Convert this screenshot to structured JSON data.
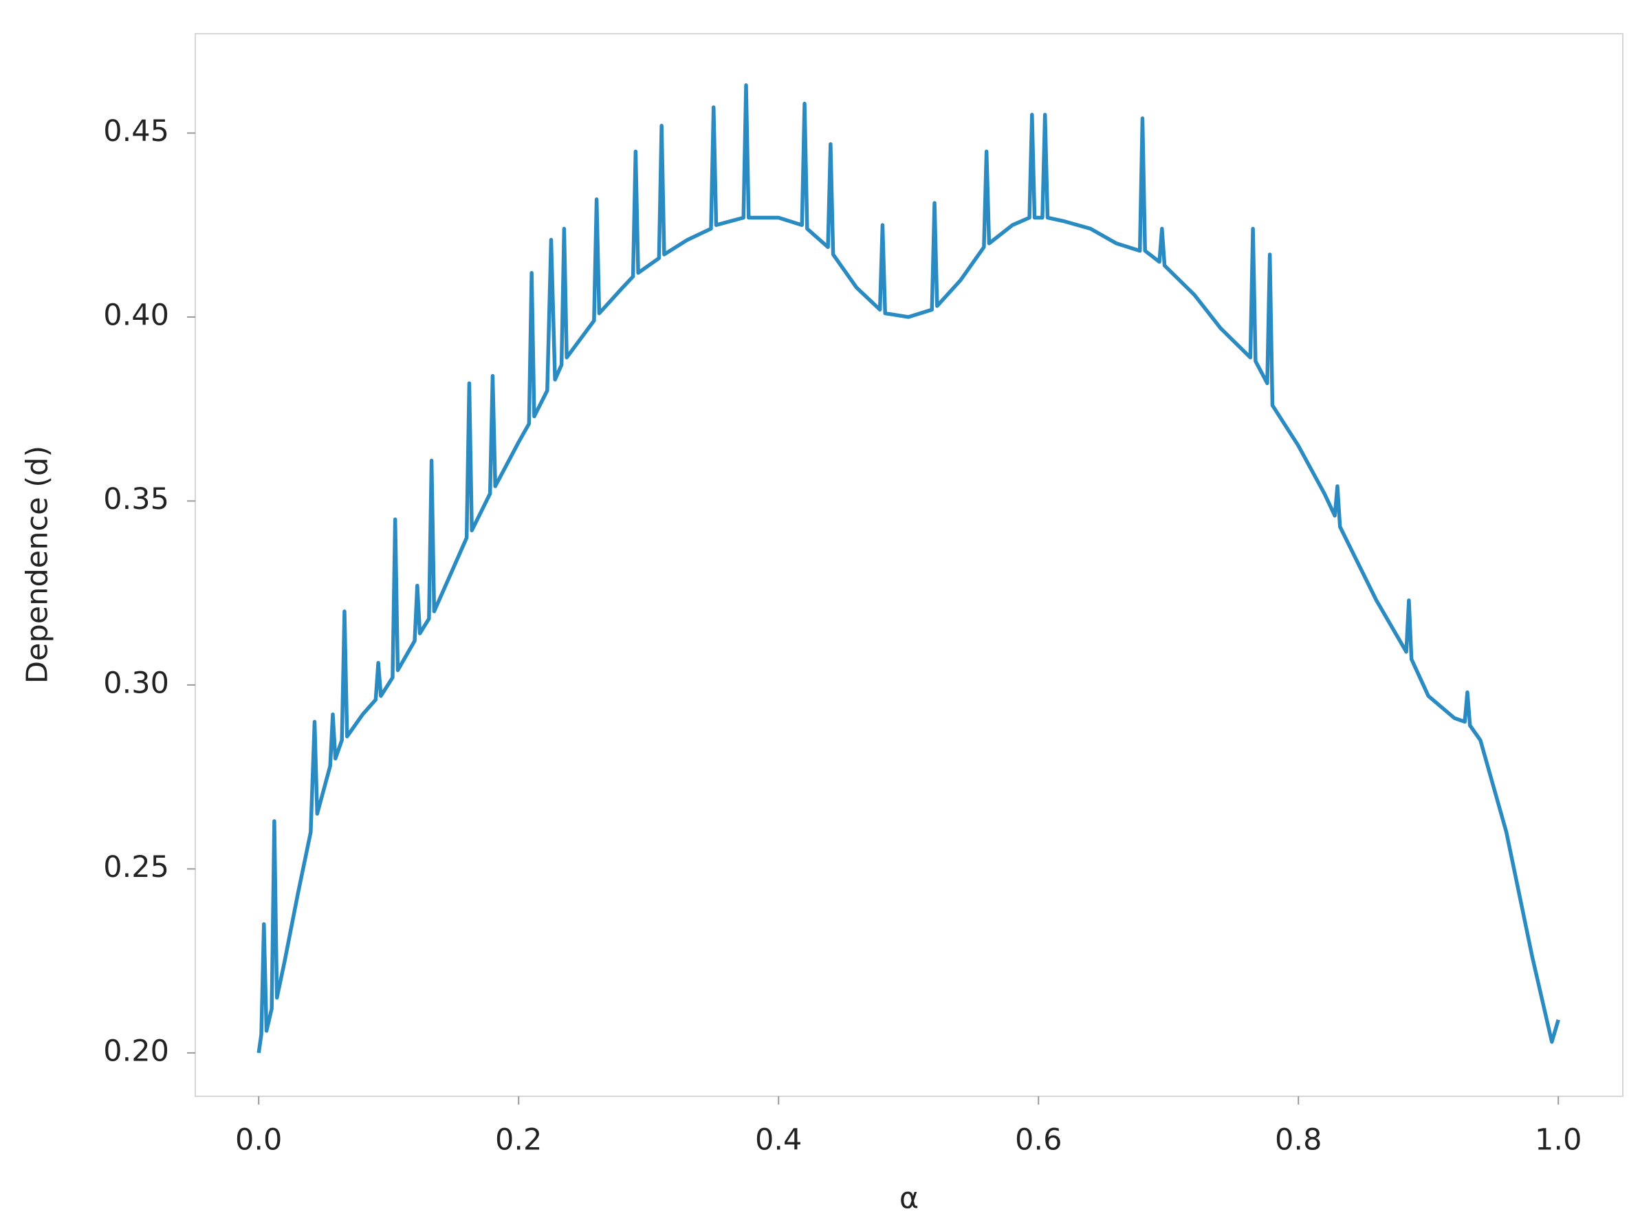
{
  "chart_data": {
    "type": "line",
    "xlabel": "α",
    "ylabel": "Dependence (d)",
    "xlim": [
      -0.0488,
      1.0496
    ],
    "ylim": [
      0.1882,
      0.477
    ],
    "xticks": [
      {
        "value": 0,
        "label": "0.0"
      },
      0.2,
      0.4,
      0.6,
      0.8,
      {
        "value": 1,
        "label": "1.0"
      }
    ],
    "yticks": [
      {
        "value": 0.2,
        "label": "0.20"
      },
      0.25,
      {
        "value": 0.3,
        "label": "0.30"
      },
      0.35,
      {
        "value": 0.4,
        "label": "0.40"
      },
      0.45
    ],
    "grid": false,
    "x": [
      0.0,
      0.002,
      0.004,
      0.006,
      0.01,
      0.012,
      0.014,
      0.02,
      0.03,
      0.04,
      0.043,
      0.045,
      0.055,
      0.057,
      0.059,
      0.064,
      0.066,
      0.068,
      0.08,
      0.09,
      0.092,
      0.094,
      0.103,
      0.105,
      0.107,
      0.12,
      0.122,
      0.124,
      0.131,
      0.133,
      0.135,
      0.15,
      0.16,
      0.162,
      0.164,
      0.178,
      0.18,
      0.182,
      0.2,
      0.208,
      0.21,
      0.212,
      0.222,
      0.225,
      0.228,
      0.233,
      0.235,
      0.237,
      0.258,
      0.26,
      0.262,
      0.28,
      0.288,
      0.29,
      0.292,
      0.308,
      0.31,
      0.312,
      0.33,
      0.348,
      0.35,
      0.352,
      0.373,
      0.375,
      0.377,
      0.4,
      0.418,
      0.42,
      0.422,
      0.438,
      0.44,
      0.442,
      0.46,
      0.478,
      0.48,
      0.482,
      0.5,
      0.518,
      0.52,
      0.522,
      0.54,
      0.558,
      0.56,
      0.562,
      0.58,
      0.593,
      0.595,
      0.597,
      0.603,
      0.605,
      0.607,
      0.62,
      0.64,
      0.66,
      0.678,
      0.68,
      0.682,
      0.693,
      0.695,
      0.697,
      0.72,
      0.74,
      0.763,
      0.765,
      0.767,
      0.776,
      0.778,
      0.78,
      0.8,
      0.82,
      0.828,
      0.83,
      0.832,
      0.86,
      0.883,
      0.885,
      0.887,
      0.9,
      0.92,
      0.928,
      0.93,
      0.932,
      0.94,
      0.96,
      0.98,
      0.995,
      1.0
    ],
    "series": [
      {
        "color": "#2a8bc3",
        "values": [
          0.2,
          0.205,
          0.235,
          0.206,
          0.212,
          0.263,
          0.215,
          0.225,
          0.243,
          0.26,
          0.29,
          0.265,
          0.278,
          0.292,
          0.28,
          0.285,
          0.32,
          0.286,
          0.292,
          0.296,
          0.306,
          0.297,
          0.302,
          0.345,
          0.304,
          0.312,
          0.327,
          0.314,
          0.318,
          0.361,
          0.32,
          0.332,
          0.34,
          0.382,
          0.342,
          0.352,
          0.384,
          0.354,
          0.366,
          0.371,
          0.412,
          0.373,
          0.38,
          0.421,
          0.383,
          0.387,
          0.424,
          0.389,
          0.399,
          0.432,
          0.401,
          0.408,
          0.411,
          0.445,
          0.412,
          0.416,
          0.452,
          0.417,
          0.421,
          0.424,
          0.457,
          0.425,
          0.427,
          0.463,
          0.427,
          0.427,
          0.425,
          0.458,
          0.424,
          0.419,
          0.447,
          0.417,
          0.408,
          0.402,
          0.425,
          0.401,
          0.4,
          0.402,
          0.431,
          0.403,
          0.41,
          0.419,
          0.445,
          0.42,
          0.425,
          0.427,
          0.455,
          0.427,
          0.427,
          0.455,
          0.427,
          0.426,
          0.424,
          0.42,
          0.418,
          0.454,
          0.418,
          0.415,
          0.424,
          0.414,
          0.406,
          0.397,
          0.389,
          0.424,
          0.388,
          0.382,
          0.417,
          0.376,
          0.365,
          0.352,
          0.346,
          0.354,
          0.343,
          0.323,
          0.309,
          0.323,
          0.307,
          0.297,
          0.291,
          0.29,
          0.298,
          0.289,
          0.285,
          0.26,
          0.226,
          0.203,
          0.209
        ]
      }
    ]
  }
}
